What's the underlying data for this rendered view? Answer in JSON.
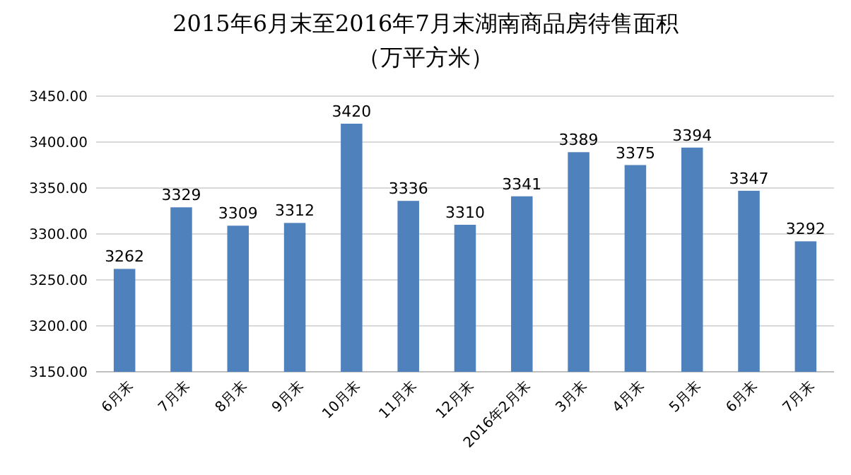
{
  "chart_data": {
    "type": "bar",
    "title": "2015年6月末至2016年7月末湖南商品房待售面积",
    "subtitle": "（万平方米）",
    "categories": [
      "6月末",
      "7月末",
      "8月末",
      "9月末",
      "10月末",
      "11月末",
      "12月末",
      "2016年2月末",
      "3月末",
      "4月末",
      "5月末",
      "6月末",
      "7月末"
    ],
    "values": [
      3262,
      3329,
      3309,
      3312,
      3420,
      3336,
      3310,
      3341,
      3389,
      3375,
      3394,
      3347,
      3292
    ],
    "color": "#4f81bd",
    "ylim": [
      3150,
      3450
    ],
    "yticks": [
      {
        "value": 3150,
        "label": "3150.00"
      },
      {
        "value": 3200,
        "label": "3200.00"
      },
      {
        "value": 3250,
        "label": "3250.00"
      },
      {
        "value": 3300,
        "label": "3300.00"
      },
      {
        "value": 3350,
        "label": "3350.00"
      },
      {
        "value": 3400,
        "label": "3400.00"
      },
      {
        "value": 3450,
        "label": "3450.00"
      }
    ],
    "grid": "y",
    "data_labels": true
  }
}
